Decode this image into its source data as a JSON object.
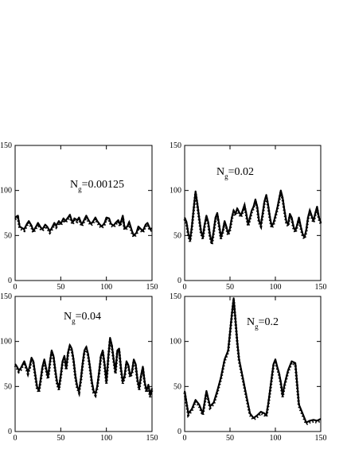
{
  "chart_data": [
    {
      "type": "line",
      "label": {
        "main": "N",
        "sub": "g",
        "value": "=0.00125"
      },
      "xlim": [
        0,
        150
      ],
      "ylim": [
        0,
        150
      ],
      "xticks": [
        0,
        50,
        100,
        150
      ],
      "yticks": [
        0,
        50,
        100,
        150
      ],
      "series": [
        {
          "style": "dashed",
          "color": "#000000",
          "x": [
            0,
            3,
            5,
            8,
            10,
            13,
            15,
            18,
            20,
            23,
            25,
            28,
            30,
            33,
            35,
            38,
            40,
            43,
            45,
            48,
            50,
            53,
            55,
            58,
            60,
            63,
            65,
            68,
            70,
            73,
            75,
            78,
            80,
            83,
            85,
            88,
            90,
            93,
            95,
            98,
            100,
            103,
            105,
            108,
            110,
            113,
            115,
            118,
            120,
            123,
            125,
            128,
            130,
            133,
            135,
            138,
            140,
            143,
            145,
            148,
            150
          ],
          "y": [
            70,
            72,
            60,
            58,
            57,
            63,
            66,
            61,
            55,
            60,
            64,
            59,
            57,
            62,
            60,
            55,
            58,
            64,
            61,
            66,
            63,
            69,
            66,
            70,
            73,
            64,
            69,
            67,
            70,
            62,
            66,
            72,
            68,
            63,
            65,
            70,
            66,
            62,
            60,
            64,
            70,
            69,
            63,
            61,
            64,
            67,
            62,
            72,
            58,
            60,
            65,
            55,
            50,
            53,
            60,
            57,
            55,
            62,
            64,
            57,
            58
          ]
        }
      ]
    },
    {
      "type": "line",
      "label": {
        "main": "N",
        "sub": "g",
        "value": "=0.02"
      },
      "xlim": [
        0,
        150
      ],
      "ylim": [
        0,
        150
      ],
      "xticks": [
        0,
        50,
        100,
        150
      ],
      "yticks": [
        0,
        50,
        100,
        150
      ],
      "series": [
        {
          "style": "dashed",
          "color": "#000000",
          "x": [
            0,
            2,
            4,
            6,
            8,
            10,
            12,
            14,
            16,
            18,
            20,
            22,
            24,
            26,
            28,
            30,
            32,
            34,
            36,
            38,
            40,
            42,
            44,
            46,
            48,
            50,
            52,
            54,
            56,
            58,
            60,
            62,
            64,
            66,
            68,
            70,
            72,
            74,
            76,
            78,
            80,
            82,
            84,
            86,
            88,
            90,
            92,
            94,
            96,
            98,
            100,
            102,
            104,
            106,
            108,
            110,
            112,
            114,
            116,
            118,
            120,
            122,
            124,
            126,
            128,
            130,
            132,
            134,
            136,
            138,
            140,
            142,
            144,
            146,
            148,
            150
          ],
          "y": [
            70,
            65,
            52,
            45,
            60,
            80,
            99,
            85,
            70,
            55,
            48,
            62,
            72,
            65,
            50,
            42,
            55,
            70,
            75,
            62,
            48,
            55,
            66,
            60,
            52,
            58,
            70,
            78,
            74,
            80,
            76,
            72,
            78,
            84,
            74,
            62,
            70,
            78,
            82,
            90,
            82,
            66,
            62,
            74,
            88,
            95,
            84,
            70,
            60,
            64,
            72,
            80,
            90,
            100,
            92,
            78,
            66,
            62,
            74,
            70,
            60,
            55,
            62,
            70,
            60,
            52,
            48,
            56,
            70,
            78,
            72,
            66,
            75,
            82,
            70,
            65
          ]
        }
      ]
    },
    {
      "type": "line",
      "label": {
        "main": "N",
        "sub": "g",
        "value": "=0.04"
      },
      "xlim": [
        0,
        150
      ],
      "ylim": [
        0,
        150
      ],
      "xticks": [
        0,
        50,
        100,
        150
      ],
      "yticks": [
        0,
        50,
        100,
        150
      ],
      "series": [
        {
          "style": "dashed",
          "color": "#000000",
          "x": [
            0,
            2,
            4,
            6,
            8,
            10,
            12,
            14,
            16,
            18,
            20,
            22,
            24,
            26,
            28,
            30,
            32,
            34,
            36,
            38,
            40,
            42,
            44,
            46,
            48,
            50,
            52,
            54,
            56,
            58,
            60,
            62,
            64,
            66,
            68,
            70,
            72,
            74,
            76,
            78,
            80,
            82,
            84,
            86,
            88,
            90,
            92,
            94,
            96,
            98,
            100,
            102,
            104,
            106,
            108,
            110,
            112,
            114,
            116,
            118,
            120,
            122,
            124,
            126,
            128,
            130,
            132,
            134,
            136,
            138,
            140,
            142,
            144,
            146,
            148,
            150
          ],
          "y": [
            75,
            72,
            68,
            70,
            74,
            78,
            72,
            66,
            72,
            82,
            78,
            64,
            50,
            45,
            58,
            72,
            80,
            70,
            60,
            76,
            90,
            84,
            68,
            55,
            48,
            62,
            78,
            84,
            70,
            88,
            96,
            92,
            80,
            62,
            50,
            45,
            58,
            76,
            90,
            94,
            86,
            72,
            56,
            45,
            42,
            50,
            66,
            84,
            90,
            75,
            55,
            82,
            104,
            96,
            80,
            66,
            90,
            92,
            70,
            55,
            62,
            78,
            74,
            62,
            66,
            80,
            75,
            58,
            48,
            62,
            72,
            55,
            45,
            52,
            40,
            48
          ]
        }
      ]
    },
    {
      "type": "line",
      "label": {
        "main": "N",
        "sub": "g",
        "value": "=0.2"
      },
      "xlim": [
        0,
        150
      ],
      "ylim": [
        0,
        150
      ],
      "xticks": [
        0,
        50,
        100,
        150
      ],
      "yticks": [
        0,
        50,
        100,
        150
      ],
      "series": [
        {
          "style": "dashed",
          "color": "#000000",
          "x": [
            0,
            4,
            8,
            12,
            16,
            20,
            24,
            28,
            32,
            36,
            40,
            44,
            48,
            50,
            52,
            54,
            56,
            58,
            60,
            64,
            68,
            72,
            76,
            80,
            84,
            88,
            90,
            92,
            94,
            96,
            98,
            100,
            102,
            104,
            106,
            108,
            110,
            114,
            118,
            122,
            126,
            130,
            134,
            138,
            142,
            146,
            150
          ],
          "y": [
            45,
            20,
            25,
            35,
            30,
            20,
            45,
            28,
            32,
            45,
            60,
            80,
            90,
            110,
            130,
            148,
            125,
            100,
            80,
            60,
            40,
            20,
            15,
            18,
            22,
            20,
            18,
            30,
            45,
            60,
            75,
            80,
            72,
            65,
            55,
            40,
            52,
            68,
            78,
            76,
            30,
            20,
            10,
            12,
            13,
            12,
            14
          ]
        }
      ]
    }
  ]
}
